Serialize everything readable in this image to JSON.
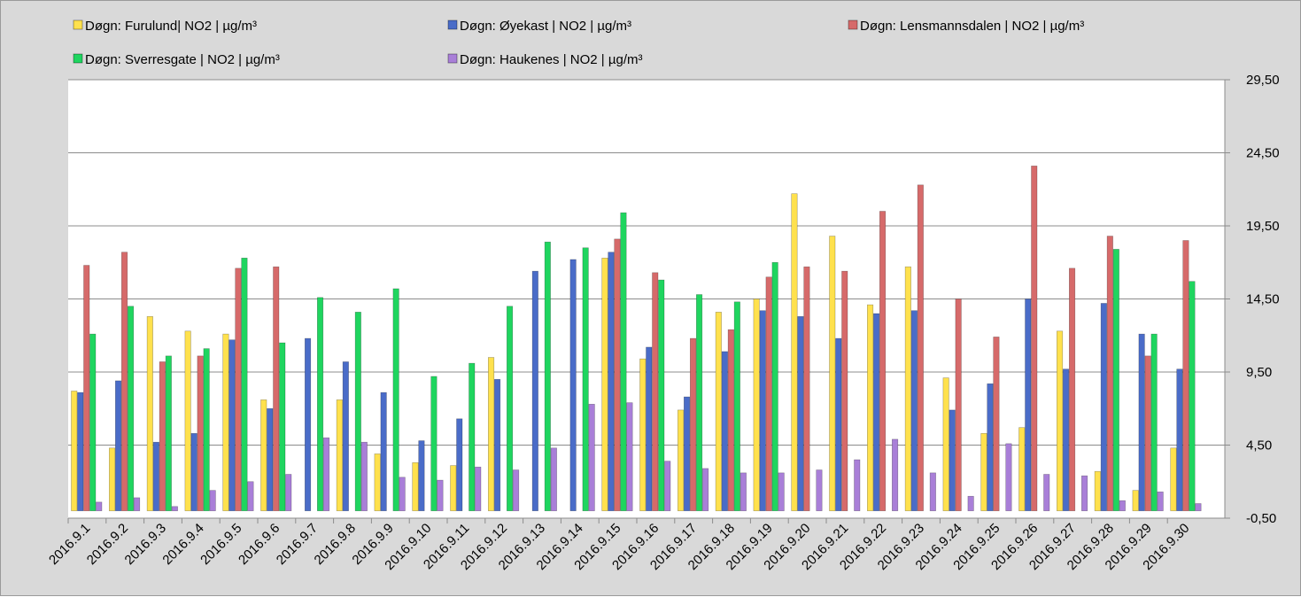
{
  "chart_data": {
    "type": "bar",
    "title": "",
    "xlabel": "",
    "ylabel": "",
    "ylim": [
      -0.5,
      29.5
    ],
    "y_ticks": [
      "29,50",
      "24,50",
      "19,50",
      "14,50",
      "9,50",
      "4,50",
      "-0,50"
    ],
    "y_axis_position": "right",
    "grid": "horizontal",
    "legend_position": "top",
    "categories": [
      "2016.9.1",
      "2016.9.2",
      "2016.9.3",
      "2016.9.4",
      "2016.9.5",
      "2016.9.6",
      "2016.9.7",
      "2016.9.8",
      "2016.9.9",
      "2016.9.10",
      "2016.9.11",
      "2016.9.12",
      "2016.9.13",
      "2016.9.14",
      "2016.9.15",
      "2016.9.16",
      "2016.9.17",
      "2016.9.18",
      "2016.9.19",
      "2016.9.20",
      "2016.9.21",
      "2016.9.22",
      "2016.9.23",
      "2016.9.24",
      "2016.9.25",
      "2016.9.26",
      "2016.9.27",
      "2016.9.28",
      "2016.9.29",
      "2016.9.30"
    ],
    "series": [
      {
        "name": "Døgn: Furulund| NO2 | µg/m³",
        "color": "#ffe14d",
        "values": [
          8.2,
          4.3,
          13.3,
          12.3,
          12.1,
          7.6,
          null,
          7.6,
          3.9,
          3.3,
          3.1,
          10.5,
          null,
          null,
          17.3,
          10.4,
          6.9,
          13.6,
          14.5,
          21.7,
          18.8,
          14.1,
          16.7,
          9.1,
          5.3,
          5.7,
          12.3,
          2.7,
          1.4,
          4.3
        ]
      },
      {
        "name": "Døgn: Øyekast | NO2 | µg/m³",
        "color": "#4a6cc8",
        "values": [
          8.1,
          8.9,
          4.7,
          5.3,
          11.7,
          7.0,
          11.8,
          10.2,
          8.1,
          4.8,
          6.3,
          9.0,
          16.4,
          17.2,
          17.7,
          11.2,
          7.8,
          10.9,
          13.7,
          13.3,
          11.8,
          13.5,
          13.7,
          6.9,
          8.7,
          14.5,
          9.7,
          14.2,
          12.1,
          9.7
        ]
      },
      {
        "name": "Døgn: Lensmannsdalen | NO2 | µg/m³",
        "color": "#d66a6a",
        "values": [
          16.8,
          17.7,
          10.2,
          10.6,
          16.6,
          16.7,
          null,
          null,
          null,
          null,
          null,
          null,
          null,
          null,
          18.6,
          16.3,
          11.8,
          12.4,
          16.0,
          16.7,
          16.4,
          20.5,
          22.3,
          14.5,
          11.9,
          23.6,
          16.6,
          18.8,
          10.6,
          18.5
        ]
      },
      {
        "name": "Døgn: Sverresgate  | NO2 | µg/m³",
        "color": "#1fd55f",
        "values": [
          12.1,
          14.0,
          10.6,
          11.1,
          17.3,
          11.5,
          14.6,
          13.6,
          15.2,
          9.2,
          10.1,
          14.0,
          18.4,
          18.0,
          20.4,
          15.8,
          14.8,
          14.3,
          17.0,
          null,
          null,
          null,
          null,
          null,
          null,
          null,
          null,
          17.9,
          12.1,
          15.7
        ]
      },
      {
        "name": "Døgn: Haukenes | NO2 | µg/m³",
        "color": "#a97fd8",
        "values": [
          0.6,
          0.9,
          0.3,
          1.4,
          2.0,
          2.5,
          5.0,
          4.7,
          2.3,
          2.1,
          3.0,
          2.8,
          4.3,
          7.3,
          7.4,
          3.4,
          2.9,
          2.6,
          2.6,
          2.8,
          3.5,
          4.9,
          2.6,
          1.0,
          4.6,
          2.5,
          2.4,
          0.7,
          1.3,
          0.5
        ]
      }
    ]
  }
}
